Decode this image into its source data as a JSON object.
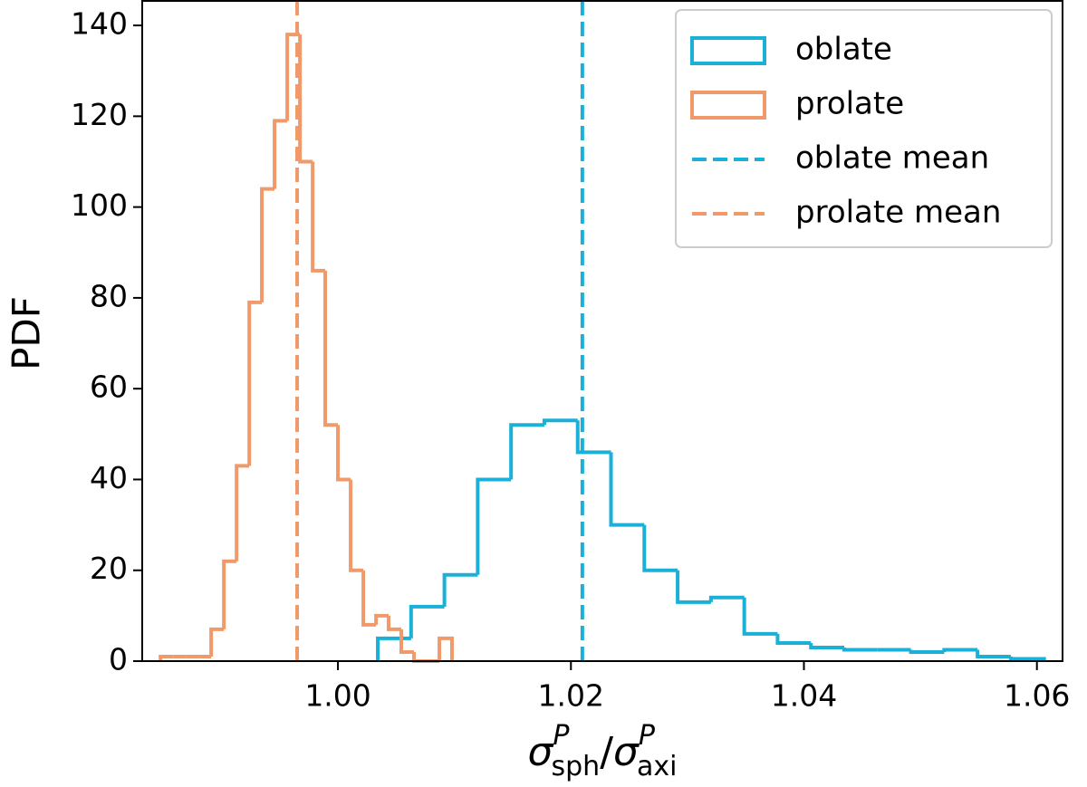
{
  "chart_data": {
    "type": "histogram",
    "ylabel": "PDF",
    "xlabel": {
      "numerator": {
        "symbol": "σ",
        "sup": "P",
        "sub": "sph"
      },
      "separator": "/",
      "denominator": {
        "symbol": "σ",
        "sup": "P",
        "sub": "axi"
      }
    },
    "xlim": [
      0.9832,
      1.0622
    ],
    "ylim": [
      0,
      145.4
    ],
    "xticks": [
      {
        "value": 1.0,
        "label": "1.00"
      },
      {
        "value": 1.02,
        "label": "1.02"
      },
      {
        "value": 1.04,
        "label": "1.04"
      },
      {
        "value": 1.06,
        "label": "1.06"
      }
    ],
    "yticks": [
      0,
      20,
      40,
      60,
      80,
      100,
      120,
      140
    ],
    "legend": "upper right",
    "series": [
      {
        "name": "oblate",
        "color": "#1ab0d8",
        "bins": [
          1.00342,
          1.00628,
          1.00914,
          1.012,
          1.01486,
          1.01772,
          1.02058,
          1.02344,
          1.0263,
          1.02916,
          1.03202,
          1.03488,
          1.03774,
          1.0406,
          1.04346,
          1.04632,
          1.04918,
          1.05204,
          1.0549,
          1.05776,
          1.06062
        ],
        "values": [
          5,
          12,
          19,
          40,
          52,
          53,
          46,
          30,
          20,
          13,
          14,
          6,
          4,
          3,
          2.5,
          2.5,
          2,
          2.5,
          1,
          0.5
        ]
      },
      {
        "name": "prolate",
        "color": "#f0996a",
        "bins": [
          0.98477,
          0.98586,
          0.98695,
          0.98803,
          0.98912,
          0.99021,
          0.9913,
          0.99239,
          0.99347,
          0.99456,
          0.99565,
          0.99674,
          0.99783,
          0.99891,
          1.0,
          1.00109,
          1.00218,
          1.00327,
          1.00435,
          1.00544,
          1.00653,
          1.00762,
          1.00871,
          1.00979
        ],
        "values": [
          1,
          1,
          1,
          1,
          7,
          22,
          43,
          79,
          104,
          119,
          138,
          110,
          86,
          52,
          40,
          20,
          8,
          10,
          7,
          2,
          0,
          0,
          5
        ]
      }
    ],
    "mean_lines": [
      {
        "name": "oblate mean",
        "color": "#1ab0d8",
        "x": 1.02098
      },
      {
        "name": "prolate mean",
        "color": "#f0996a",
        "x": 0.9965
      }
    ]
  }
}
